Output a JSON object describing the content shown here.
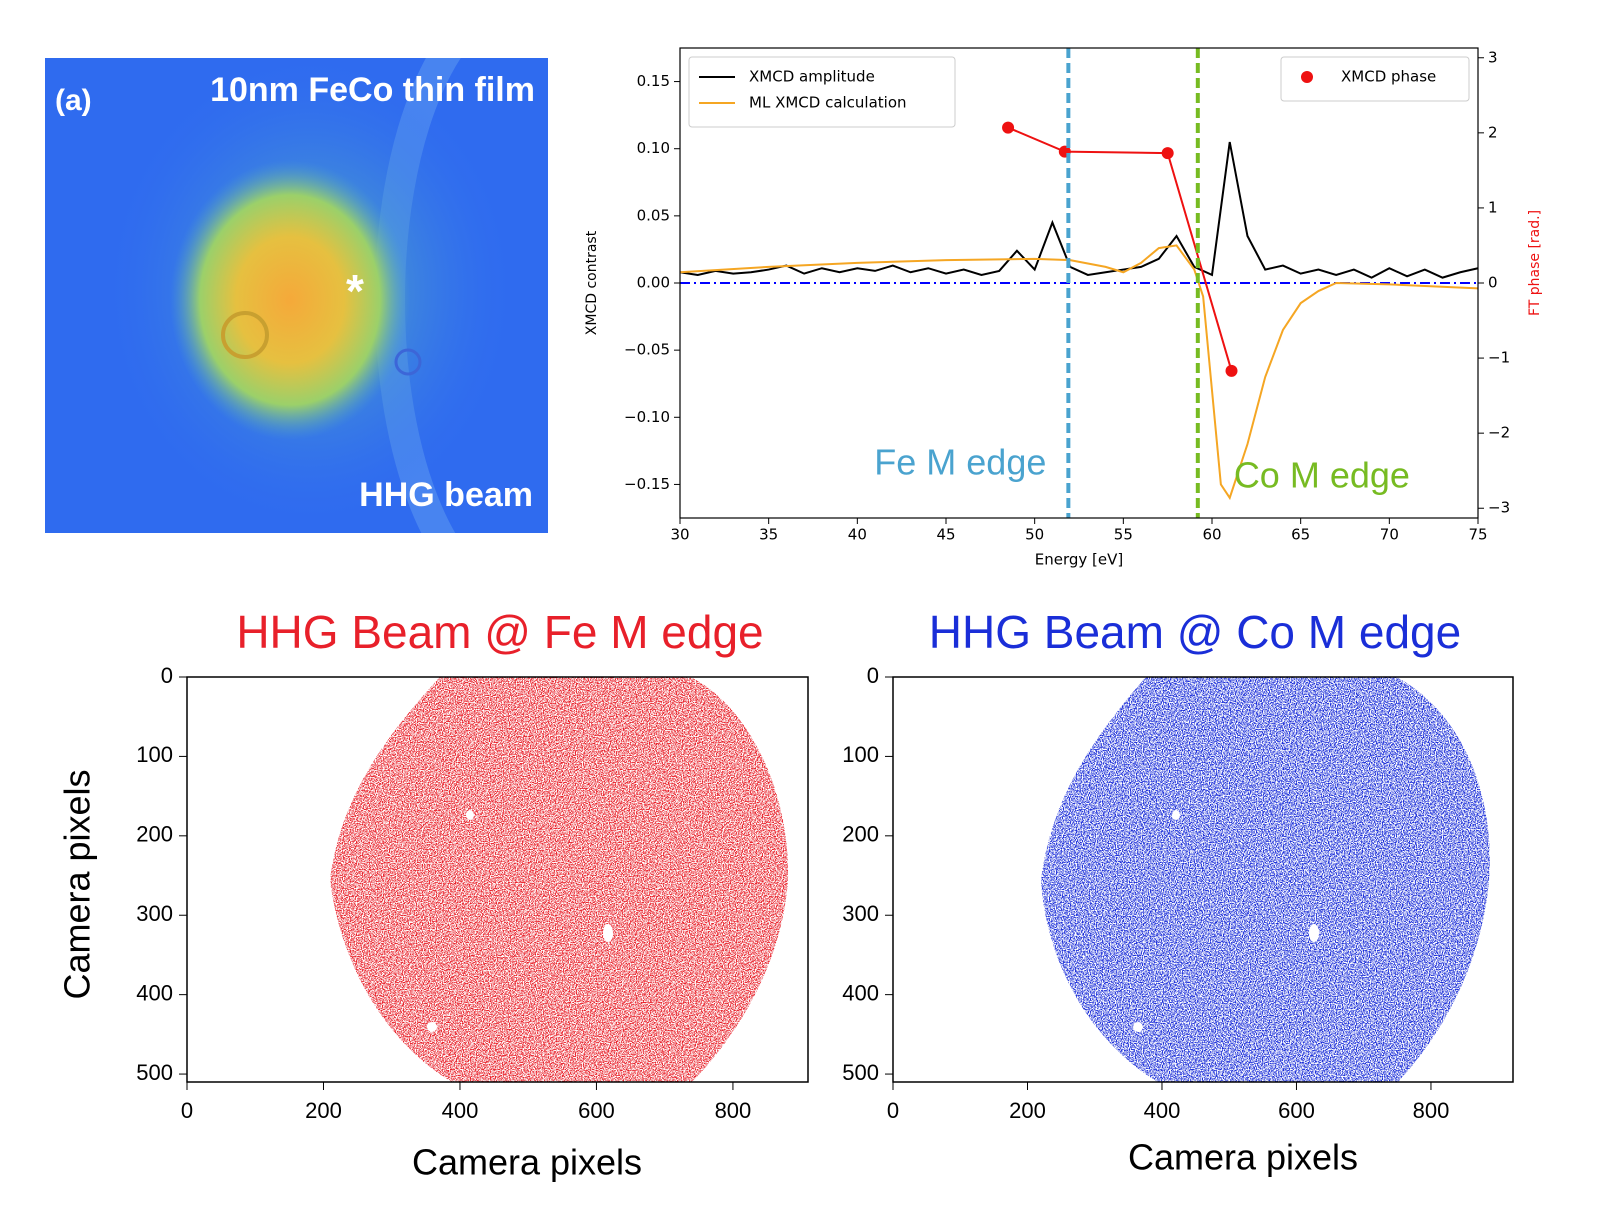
{
  "chart_data": [
    {
      "type": "image",
      "panel_label": "(a)",
      "title": "10nm FeCo thin film",
      "annotations": [
        "*",
        "HHG beam"
      ]
    },
    {
      "type": "line",
      "xlabel": "Energy [eV]",
      "ylabel": "XMCD contrast",
      "y2label": "FT phase [rad.]",
      "xlim": [
        30,
        75
      ],
      "xticks": [
        30,
        35,
        40,
        45,
        50,
        55,
        60,
        65,
        70,
        75
      ],
      "ylim": [
        -0.175,
        0.175
      ],
      "yticks": [
        {
          "value": -0.15,
          "label": "−0.15"
        },
        {
          "value": -0.1,
          "label": "−0.10"
        },
        {
          "value": -0.05,
          "label": "−0.05"
        },
        {
          "value": 0,
          "label": "0.00"
        },
        0.05,
        {
          "value": 0.1,
          "label": "0.10"
        },
        0.15
      ],
      "y2lim": [
        -3.13,
        3.13
      ],
      "y2ticks": [
        {
          "value": -3,
          "label": "−3"
        },
        {
          "value": -2,
          "label": "−2"
        },
        {
          "value": -1,
          "label": "−1"
        },
        0,
        1,
        2,
        3
      ],
      "legend": [
        "upper left",
        "upper right"
      ],
      "reference_line": {
        "y": 0,
        "color": "#0000ff"
      },
      "vlines": [
        {
          "x": 51.9,
          "color": "#4aa3cf",
          "label": "Fe M edge"
        },
        {
          "x": 59.2,
          "color": "#77bb22",
          "label": "Co M edge"
        }
      ],
      "series": [
        {
          "name": "XMCD amplitude",
          "color": "#000000",
          "x": [
            30,
            31,
            32,
            33,
            34,
            35,
            36,
            37,
            38,
            39,
            40,
            41,
            42,
            43,
            44,
            45,
            46,
            47,
            48,
            49,
            50,
            51,
            52,
            53,
            54,
            55,
            56,
            57,
            58,
            59,
            60,
            61,
            62,
            63,
            64,
            65,
            66,
            67,
            68,
            69,
            70,
            71,
            72,
            73,
            74,
            75
          ],
          "values": [
            0.008,
            0.006,
            0.009,
            0.007,
            0.008,
            0.01,
            0.013,
            0.007,
            0.011,
            0.008,
            0.011,
            0.009,
            0.013,
            0.008,
            0.011,
            0.007,
            0.01,
            0.006,
            0.009,
            0.024,
            0.01,
            0.045,
            0.012,
            0.006,
            0.008,
            0.01,
            0.012,
            0.018,
            0.035,
            0.012,
            0.006,
            0.105,
            0.035,
            0.01,
            0.013,
            0.007,
            0.01,
            0.006,
            0.01,
            0.004,
            0.011,
            0.005,
            0.01,
            0.004,
            0.008,
            0.011
          ]
        },
        {
          "name": "ML XMCD calculation",
          "color": "#f5a623",
          "x": [
            30,
            35,
            40,
            45,
            50,
            52,
            54,
            55,
            56,
            57,
            58,
            59,
            59.5,
            60,
            60.5,
            61,
            62,
            63,
            64,
            65,
            66,
            67,
            70,
            75
          ],
          "values": [
            0.008,
            0.012,
            0.015,
            0.017,
            0.018,
            0.017,
            0.012,
            0.008,
            0.015,
            0.026,
            0.028,
            0.01,
            -0.01,
            -0.08,
            -0.15,
            -0.16,
            -0.12,
            -0.07,
            -0.035,
            -0.015,
            -0.006,
            0,
            -0.001,
            -0.004
          ]
        },
        {
          "name": "XMCD phase",
          "color": "#ee1111",
          "axis": "y2",
          "marker": true,
          "x": [
            48.5,
            51.7,
            57.5,
            61.1
          ],
          "values": [
            2.07,
            1.75,
            1.73,
            -1.17
          ]
        }
      ]
    },
    {
      "type": "heatmap",
      "title": "HHG Beam @ Fe M edge",
      "color": "#e8202a",
      "xlabel": "Camera pixels",
      "ylabel": "Camera pixels",
      "xlim": [
        0,
        910
      ],
      "xticks": [
        0,
        200,
        400,
        600,
        800
      ],
      "ylim": [
        0,
        510
      ],
      "y_inverted": true,
      "yticks": [
        0,
        100,
        200,
        300,
        400,
        500
      ]
    },
    {
      "type": "heatmap",
      "title": "HHG Beam @ Co M edge",
      "color": "#1a2ed8",
      "xlabel": "Camera pixels",
      "xlim": [
        0,
        922
      ],
      "xticks": [
        0,
        200,
        400,
        600,
        800
      ],
      "ylim": [
        0,
        510
      ],
      "y_inverted": true,
      "yticks": [
        0,
        100,
        200,
        300,
        400,
        500
      ]
    }
  ]
}
